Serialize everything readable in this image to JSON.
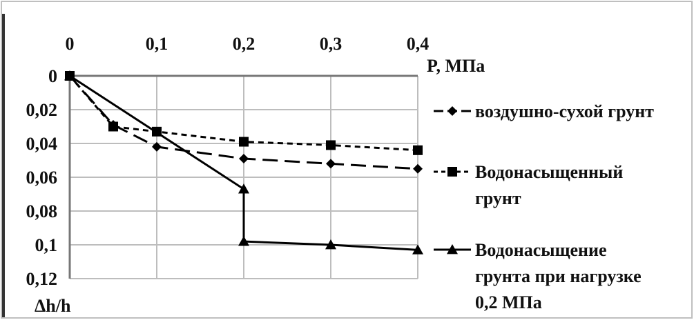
{
  "chart_data": {
    "type": "line",
    "title": "",
    "xlabel": "P, МПа",
    "ylabel": "Δh/h",
    "xlim": [
      0,
      0.4
    ],
    "ylim": [
      0,
      0.12
    ],
    "y_inverted": true,
    "x_axis_position": "top",
    "grid": {
      "vertical": true,
      "horizontal": true
    },
    "legend_position": "right",
    "x_ticks": [
      {
        "value": 0,
        "label": "0"
      },
      {
        "value": 0.1,
        "label": "0,1"
      },
      {
        "value": 0.2,
        "label": "0,2"
      },
      {
        "value": 0.3,
        "label": "0,3"
      },
      {
        "value": 0.4,
        "label": "0,4"
      }
    ],
    "y_ticks": [
      {
        "value": 0,
        "label": "0"
      },
      {
        "value": 0.02,
        "label": "0,02"
      },
      {
        "value": 0.04,
        "label": "0,04"
      },
      {
        "value": 0.06,
        "label": "0,06"
      },
      {
        "value": 0.08,
        "label": "0,08"
      },
      {
        "value": 0.1,
        "label": "0,1"
      },
      {
        "value": 0.12,
        "label": "0,12"
      }
    ],
    "series": [
      {
        "name": "воздушно-сухой грунт",
        "name_lines": [
          "воздушно-сухой грунт"
        ],
        "marker": "diamond",
        "line_style": "long-dash",
        "color": "#000000",
        "points": [
          [
            0,
            0
          ],
          [
            0.05,
            0.029
          ],
          [
            0.1,
            0.042
          ],
          [
            0.2,
            0.049
          ],
          [
            0.3,
            0.052
          ],
          [
            0.4,
            0.055
          ]
        ]
      },
      {
        "name": "Водонасыщенный грунт",
        "name_lines": [
          "Водонасыщенный",
          "грунт"
        ],
        "marker": "square",
        "line_style": "short-dash",
        "color": "#000000",
        "points": [
          [
            0,
            0
          ],
          [
            0.05,
            0.03
          ],
          [
            0.1,
            0.033
          ],
          [
            0.2,
            0.039
          ],
          [
            0.3,
            0.041
          ],
          [
            0.4,
            0.044
          ]
        ]
      },
      {
        "name": "Водонасыщение грунта при нагрузке 0,2 МПа",
        "name_lines": [
          "Водонасыщение",
          "грунта при нагрузке",
          "0,2 МПа"
        ],
        "marker": "triangle",
        "line_style": "solid",
        "color": "#000000",
        "points": [
          [
            0,
            0
          ],
          [
            0.2,
            0.067
          ],
          [
            0.2,
            0.098
          ],
          [
            0.3,
            0.1
          ],
          [
            0.4,
            0.103
          ]
        ]
      }
    ]
  }
}
